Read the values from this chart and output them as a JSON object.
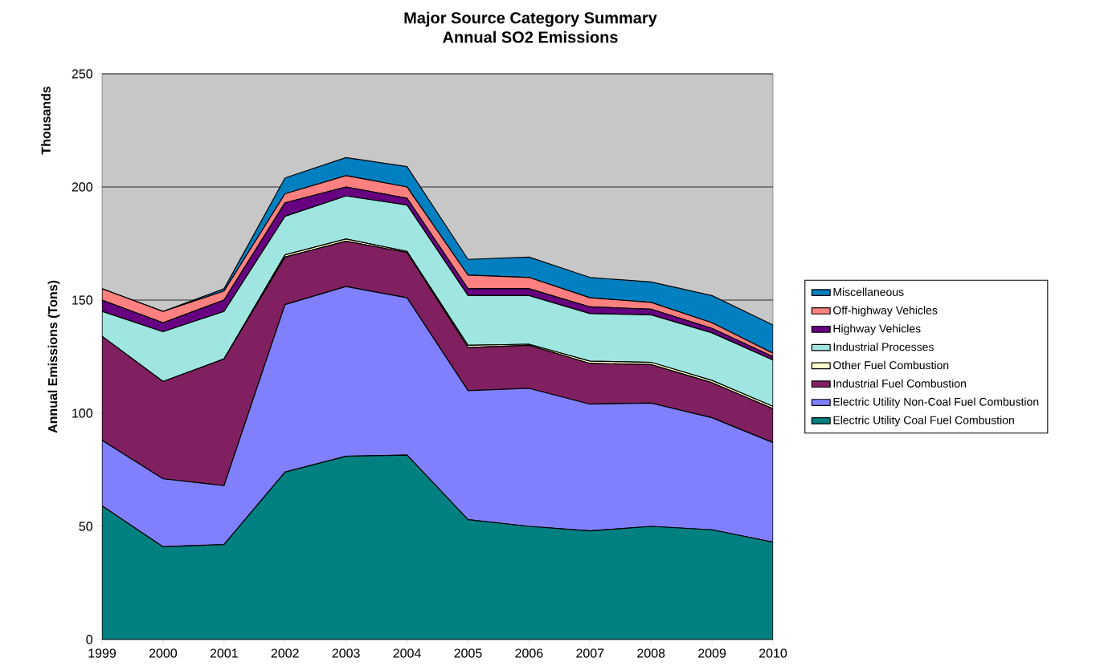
{
  "chart_data": {
    "type": "area",
    "title": "Major Source Category Summary",
    "subtitle": "Annual SO2 Emissions",
    "ylabel": "Annual Emissions (Tons)",
    "annotations": [
      "Thousands"
    ],
    "categories": [
      "1999",
      "2000",
      "2001",
      "2002",
      "2003",
      "2004",
      "2005",
      "2006",
      "2007",
      "2008",
      "2009",
      "2010"
    ],
    "stacked": true,
    "ylim": [
      0,
      250
    ],
    "yticks": [
      0,
      50,
      100,
      150,
      200,
      250
    ],
    "grid": "y",
    "legend": "right",
    "series": [
      {
        "name": "Electric Utility Coal Fuel Combustion",
        "color": "#008080",
        "values": [
          59,
          41,
          42,
          74,
          81,
          81.5,
          53,
          50,
          48,
          50,
          48.5,
          43
        ]
      },
      {
        "name": "Electric Utility Non-Coal Fuel Combustion",
        "color": "#8080ff",
        "values": [
          29,
          30,
          26,
          74,
          75,
          69.5,
          57,
          61,
          56,
          54.5,
          49.5,
          44
        ]
      },
      {
        "name": "Industrial Fuel Combustion",
        "color": "#802060",
        "values": [
          46,
          43,
          56,
          21,
          20,
          20,
          19,
          19,
          18,
          17,
          15.5,
          15
        ]
      },
      {
        "name": "Other Fuel Combustion",
        "color": "#ffffcc",
        "values": [
          0,
          0,
          0,
          1,
          1,
          0.5,
          1,
          0.5,
          1,
          1,
          1,
          1
        ]
      },
      {
        "name": "Industrial Processes",
        "color": "#a0e6e0",
        "values": [
          11,
          22,
          21,
          17,
          19,
          20.5,
          22,
          21.5,
          21,
          21,
          21,
          20.5
        ]
      },
      {
        "name": "Highway Vehicles",
        "color": "#660080",
        "values": [
          5,
          4,
          5,
          6,
          4,
          3,
          3,
          3,
          3,
          2.5,
          2,
          1.5
        ]
      },
      {
        "name": "Off-highway Vehicles",
        "color": "#ff8080",
        "values": [
          5,
          5,
          4,
          4,
          5,
          5,
          6,
          5,
          4,
          3,
          2.5,
          1.5
        ]
      },
      {
        "name": "Miscellaneous",
        "color": "#0080c0",
        "values": [
          0,
          0,
          1,
          7,
          8,
          9,
          7,
          9,
          9,
          9,
          12,
          12.5
        ]
      }
    ]
  }
}
